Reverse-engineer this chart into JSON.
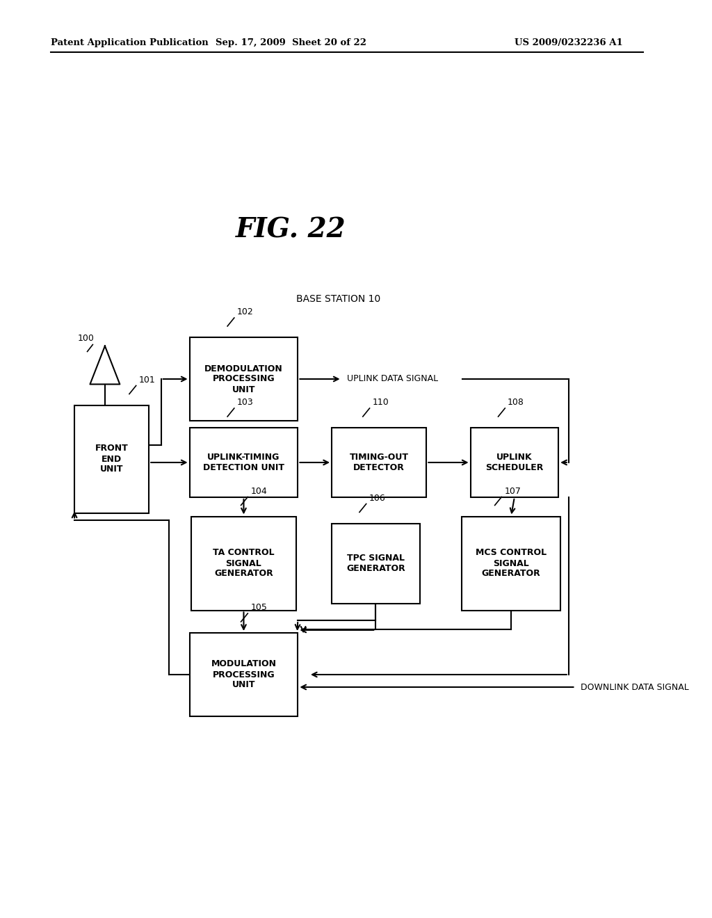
{
  "fig_title": "FIG. 22",
  "header_left": "Patent Application Publication",
  "header_mid": "Sep. 17, 2009  Sheet 20 of 22",
  "header_right": "US 2009/0232236 A1",
  "base_station_label": "BASE STATION 10",
  "background_color": "#ffffff",
  "box_facecolor": "#ffffff",
  "box_edgecolor": "#000000",
  "text_color": "#000000",
  "linewidth": 1.5
}
